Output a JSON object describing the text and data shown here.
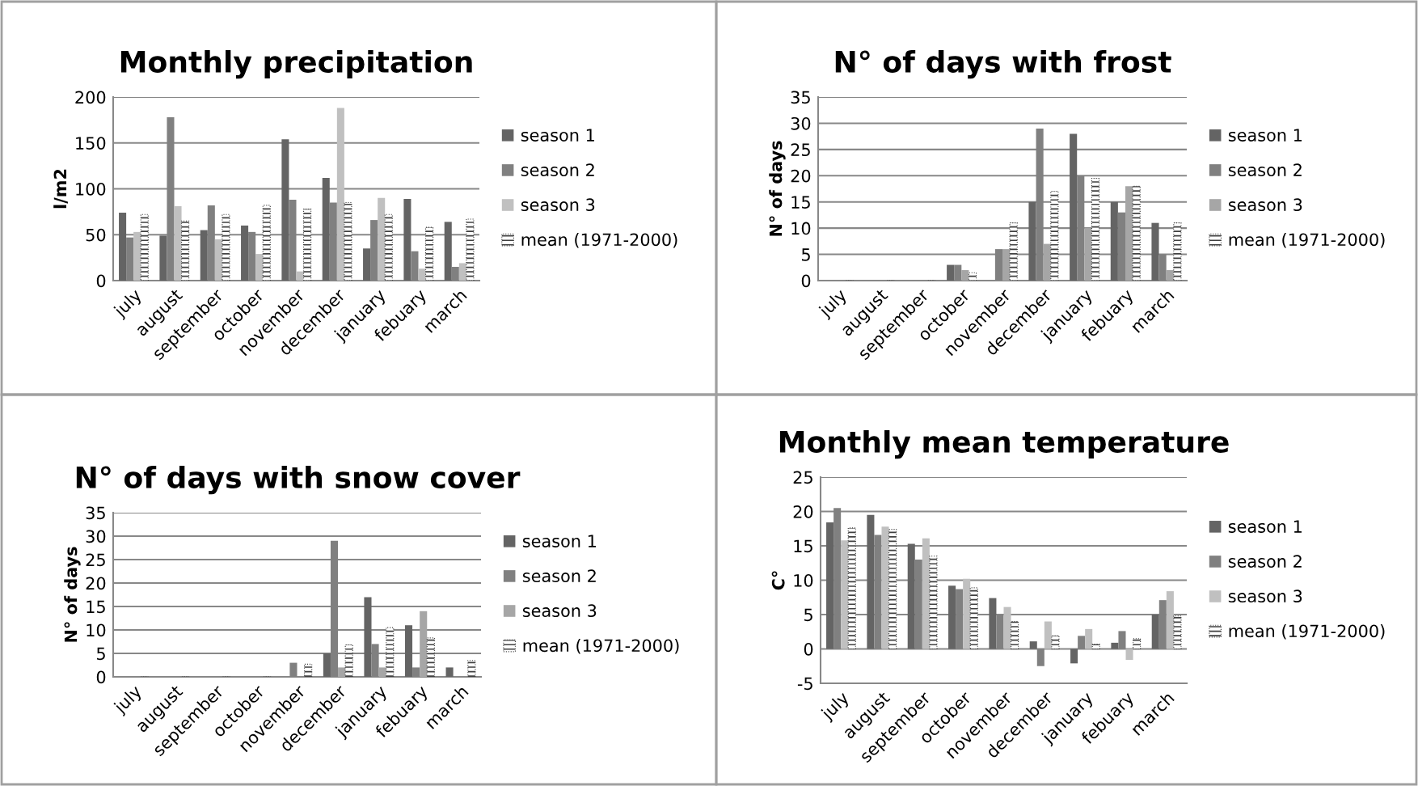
{
  "chart_data": [
    {
      "type": "bar",
      "title": "Monthly precipitation",
      "ylabel": "l/m2",
      "categories": [
        "july",
        "august",
        "september",
        "october",
        "november",
        "december",
        "january",
        "febuary",
        "march"
      ],
      "ylim": [
        0,
        200
      ],
      "yticks": [
        0,
        50,
        100,
        150,
        200
      ],
      "grid": "y",
      "legend": "right",
      "series": [
        {
          "name": "season 1",
          "color": "#646464",
          "values": [
            74,
            49,
            55,
            60,
            154,
            112,
            35,
            89,
            64
          ]
        },
        {
          "name": "season 2",
          "color": "#808080",
          "values": [
            47,
            178,
            82,
            53,
            88,
            85,
            66,
            32,
            15
          ]
        },
        {
          "name": "season 3",
          "color": "#c0c0c0",
          "values": [
            53,
            81,
            45,
            29,
            10,
            188,
            90,
            13,
            19
          ]
        },
        {
          "name": "mean (1971-2000)",
          "color": "#404040",
          "values": [
            72,
            65,
            72,
            82,
            78,
            85,
            72,
            58,
            67
          ]
        }
      ]
    },
    {
      "type": "bar",
      "title": "N° of days with frost",
      "ylabel": "N° of days",
      "categories": [
        "july",
        "august",
        "september",
        "october",
        "november",
        "december",
        "january",
        "febuary",
        "march"
      ],
      "ylim": [
        0,
        35
      ],
      "yticks": [
        0,
        5,
        10,
        15,
        20,
        25,
        30,
        35
      ],
      "grid": "y",
      "legend": "right",
      "series": [
        {
          "name": "season 1",
          "color": "#646464",
          "values": [
            0,
            0,
            0,
            3,
            0,
            15,
            28,
            15,
            11
          ]
        },
        {
          "name": "season 2",
          "color": "#808080",
          "values": [
            0,
            0,
            0,
            3,
            6,
            29,
            20,
            13,
            5
          ]
        },
        {
          "name": "season 3",
          "color": "#a6a6a6",
          "values": [
            0,
            0,
            0,
            2,
            6,
            7,
            10,
            18,
            2
          ]
        },
        {
          "name": "mean (1971-2000)",
          "color": "#404040",
          "values": [
            0,
            0,
            0,
            1.5,
            11,
            17,
            19.5,
            18,
            11
          ]
        }
      ]
    },
    {
      "type": "bar",
      "title": "N° of days with snow cover",
      "ylabel": "N° of days",
      "categories": [
        "july",
        "august",
        "september",
        "october",
        "november",
        "december",
        "january",
        "febuary",
        "march"
      ],
      "ylim": [
        0,
        35
      ],
      "yticks": [
        0,
        5,
        10,
        15,
        20,
        25,
        30,
        35
      ],
      "grid": "y",
      "legend": "right",
      "series": [
        {
          "name": "season 1",
          "color": "#646464",
          "values": [
            0,
            0,
            0,
            0,
            0,
            5,
            17,
            11,
            2
          ]
        },
        {
          "name": "season 2",
          "color": "#808080",
          "values": [
            0,
            0,
            0,
            0,
            3,
            29,
            7,
            2,
            0
          ]
        },
        {
          "name": "season 3",
          "color": "#a6a6a6",
          "values": [
            0,
            0,
            0,
            0,
            0,
            2,
            2,
            14,
            0
          ]
        },
        {
          "name": "mean (1971-2000)",
          "color": "#404040",
          "values": [
            0,
            0,
            0,
            0,
            2.7,
            6.8,
            10.5,
            8.3,
            3.5
          ]
        }
      ]
    },
    {
      "type": "bar",
      "title": "Monthly mean temperature",
      "ylabel": "C°",
      "categories": [
        "july",
        "august",
        "september",
        "october",
        "november",
        "december",
        "january",
        "febuary",
        "march"
      ],
      "ylim": [
        -5,
        25
      ],
      "yticks": [
        {
          "value": -5,
          "label": "-5"
        },
        0,
        5,
        10,
        15,
        20,
        25
      ],
      "grid": "y",
      "legend": "right",
      "series": [
        {
          "name": "season 1",
          "color": "#646464",
          "values": [
            18.4,
            19.5,
            15.3,
            9.2,
            7.4,
            1.1,
            -2.1,
            0.9,
            5.0
          ]
        },
        {
          "name": "season 2",
          "color": "#808080",
          "values": [
            20.5,
            16.6,
            13.0,
            8.7,
            5.0,
            -2.5,
            1.9,
            2.6,
            7.1
          ]
        },
        {
          "name": "season 3",
          "color": "#c0c0c0",
          "values": [
            15.8,
            17.8,
            16.1,
            10.2,
            6.1,
            4.0,
            2.9,
            -1.6,
            8.4
          ]
        },
        {
          "name": "mean (1971-2000)",
          "color": "#404040",
          "values": [
            17.6,
            17.4,
            13.5,
            8.9,
            4.0,
            1.9,
            0.7,
            1.5,
            4.8
          ]
        }
      ]
    }
  ]
}
